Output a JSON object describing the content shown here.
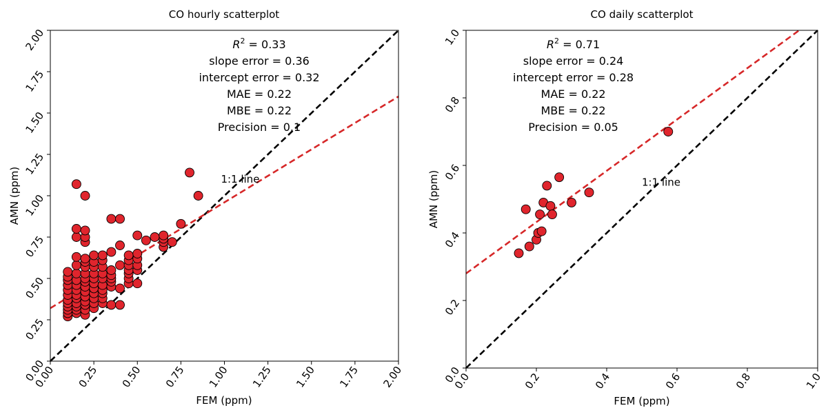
{
  "chart_data": [
    {
      "type": "scatter",
      "title": "CO hourly scatterplot",
      "xlabel": "FEM (ppm)",
      "ylabel": "AMN (ppm)",
      "xlim": [
        0,
        2
      ],
      "ylim": [
        0,
        2
      ],
      "xticks": [
        "0.00",
        "0.25",
        "0.50",
        "0.75",
        "1.00",
        "1.25",
        "1.50",
        "1.75",
        "2.00"
      ],
      "yticks": [
        "0.00",
        "0.25",
        "0.50",
        "0.75",
        "1.00",
        "1.25",
        "1.50",
        "1.75",
        "2.00"
      ],
      "grid": false,
      "one_to_one_label": "1:1 line",
      "one_to_one_label_pos": [
        0.98,
        1.08
      ],
      "fit_line": {
        "slope": 0.64,
        "intercept": 0.32
      },
      "stats": {
        "r2_symbol": "R",
        "r2_value": " = 0.33",
        "slope_error": "slope error = 0.36",
        "intercept_error": "intercept error = 0.32",
        "mae": "MAE = 0.22",
        "mbe": "MBE = 0.22",
        "precision": "Precision = 0.1"
      },
      "stats_center_x": 0.6,
      "points": [
        [
          0.1,
          0.27
        ],
        [
          0.1,
          0.29
        ],
        [
          0.1,
          0.31
        ],
        [
          0.1,
          0.33
        ],
        [
          0.1,
          0.35
        ],
        [
          0.1,
          0.37
        ],
        [
          0.1,
          0.4
        ],
        [
          0.1,
          0.43
        ],
        [
          0.1,
          0.46
        ],
        [
          0.1,
          0.49
        ],
        [
          0.1,
          0.51
        ],
        [
          0.1,
          0.54
        ],
        [
          0.15,
          0.29
        ],
        [
          0.15,
          0.31
        ],
        [
          0.15,
          0.33
        ],
        [
          0.15,
          0.35
        ],
        [
          0.15,
          0.38
        ],
        [
          0.15,
          0.4
        ],
        [
          0.15,
          0.43
        ],
        [
          0.15,
          0.46
        ],
        [
          0.15,
          0.49
        ],
        [
          0.15,
          0.53
        ],
        [
          0.15,
          0.58
        ],
        [
          0.15,
          0.63
        ],
        [
          0.15,
          0.75
        ],
        [
          0.15,
          0.8
        ],
        [
          0.15,
          1.07
        ],
        [
          0.2,
          0.28
        ],
        [
          0.2,
          0.31
        ],
        [
          0.2,
          0.34
        ],
        [
          0.2,
          0.36
        ],
        [
          0.2,
          0.39
        ],
        [
          0.2,
          0.42
        ],
        [
          0.2,
          0.45
        ],
        [
          0.2,
          0.48
        ],
        [
          0.2,
          0.5
        ],
        [
          0.2,
          0.53
        ],
        [
          0.2,
          0.57
        ],
        [
          0.2,
          0.6
        ],
        [
          0.2,
          0.62
        ],
        [
          0.2,
          0.72
        ],
        [
          0.2,
          0.75
        ],
        [
          0.2,
          0.79
        ],
        [
          0.2,
          1.0
        ],
        [
          0.25,
          0.32
        ],
        [
          0.25,
          0.35
        ],
        [
          0.25,
          0.38
        ],
        [
          0.25,
          0.41
        ],
        [
          0.25,
          0.44
        ],
        [
          0.25,
          0.47
        ],
        [
          0.25,
          0.5
        ],
        [
          0.25,
          0.53
        ],
        [
          0.25,
          0.57
        ],
        [
          0.25,
          0.6
        ],
        [
          0.25,
          0.64
        ],
        [
          0.3,
          0.35
        ],
        [
          0.3,
          0.38
        ],
        [
          0.3,
          0.41
        ],
        [
          0.3,
          0.43
        ],
        [
          0.3,
          0.46
        ],
        [
          0.3,
          0.5
        ],
        [
          0.3,
          0.53
        ],
        [
          0.3,
          0.57
        ],
        [
          0.3,
          0.61
        ],
        [
          0.3,
          0.64
        ],
        [
          0.35,
          0.34
        ],
        [
          0.35,
          0.45
        ],
        [
          0.35,
          0.48
        ],
        [
          0.35,
          0.5
        ],
        [
          0.35,
          0.52
        ],
        [
          0.35,
          0.55
        ],
        [
          0.35,
          0.66
        ],
        [
          0.35,
          0.86
        ],
        [
          0.4,
          0.34
        ],
        [
          0.4,
          0.44
        ],
        [
          0.4,
          0.58
        ],
        [
          0.4,
          0.7
        ],
        [
          0.4,
          0.86
        ],
        [
          0.45,
          0.47
        ],
        [
          0.45,
          0.5
        ],
        [
          0.45,
          0.53
        ],
        [
          0.45,
          0.55
        ],
        [
          0.45,
          0.58
        ],
        [
          0.45,
          0.61
        ],
        [
          0.45,
          0.64
        ],
        [
          0.5,
          0.47
        ],
        [
          0.5,
          0.55
        ],
        [
          0.5,
          0.58
        ],
        [
          0.5,
          0.62
        ],
        [
          0.5,
          0.65
        ],
        [
          0.5,
          0.76
        ],
        [
          0.55,
          0.73
        ],
        [
          0.6,
          0.75
        ],
        [
          0.65,
          0.69
        ],
        [
          0.65,
          0.72
        ],
        [
          0.65,
          0.74
        ],
        [
          0.65,
          0.76
        ],
        [
          0.7,
          0.72
        ],
        [
          0.75,
          0.83
        ],
        [
          0.8,
          1.14
        ],
        [
          0.85,
          1.0
        ]
      ]
    },
    {
      "type": "scatter",
      "title": "CO daily scatterplot",
      "xlabel": "FEM (ppm)",
      "ylabel": "AMN (ppm)",
      "xlim": [
        0,
        1
      ],
      "ylim": [
        0,
        1
      ],
      "xticks": [
        "0.0",
        "0.2",
        "0.4",
        "0.6",
        "0.8",
        "1.0"
      ],
      "yticks": [
        "0.0",
        "0.2",
        "0.4",
        "0.6",
        "0.8",
        "1.0"
      ],
      "grid": false,
      "one_to_one_label": "1:1 line",
      "one_to_one_label_pos": [
        0.5,
        0.54
      ],
      "fit_line": {
        "slope": 0.76,
        "intercept": 0.28
      },
      "stats": {
        "r2_symbol": "R",
        "r2_value": " = 0.71",
        "slope_error": "slope error = 0.24",
        "intercept_error": "intercept error = 0.28",
        "mae": "MAE = 0.22",
        "mbe": "MBE = 0.22",
        "precision": "Precision = 0.05"
      },
      "stats_center_x": 0.305,
      "points": [
        [
          0.15,
          0.34
        ],
        [
          0.17,
          0.47
        ],
        [
          0.18,
          0.36
        ],
        [
          0.2,
          0.38
        ],
        [
          0.205,
          0.4
        ],
        [
          0.21,
          0.455
        ],
        [
          0.215,
          0.405
        ],
        [
          0.22,
          0.49
        ],
        [
          0.23,
          0.54
        ],
        [
          0.24,
          0.48
        ],
        [
          0.245,
          0.455
        ],
        [
          0.265,
          0.565
        ],
        [
          0.3,
          0.49
        ],
        [
          0.35,
          0.52
        ],
        [
          0.575,
          0.7
        ]
      ]
    }
  ]
}
